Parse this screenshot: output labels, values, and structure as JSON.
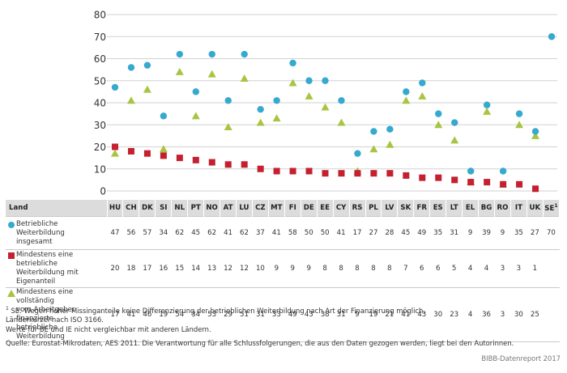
{
  "chart_data": {
    "type": "scatter",
    "ylim": [
      0,
      80
    ],
    "yticks": [
      0,
      10,
      20,
      30,
      40,
      50,
      60,
      70,
      80
    ],
    "grid": true,
    "categories": [
      "HU",
      "CH",
      "DK",
      "SI",
      "NL",
      "PT",
      "NO",
      "AT",
      "LU",
      "CZ",
      "MT",
      "FI",
      "DE",
      "EE",
      "CY",
      "RS",
      "PL",
      "LV",
      "SK",
      "FR",
      "ES",
      "LT",
      "EL",
      "BG",
      "RO",
      "IT",
      "UK",
      "SE"
    ],
    "last_category_sup": "1",
    "series": [
      {
        "name": "Betriebliche Weiterbildung insgesamt",
        "marker": "circle",
        "color": "#36a9cf",
        "values": [
          47,
          56,
          57,
          34,
          62,
          45,
          62,
          41,
          62,
          37,
          41,
          58,
          50,
          50,
          41,
          17,
          27,
          28,
          45,
          49,
          35,
          31,
          9,
          39,
          9,
          35,
          27,
          70
        ],
        "display": [
          "47",
          "56",
          "57",
          "34",
          "62",
          "45",
          "62",
          "41",
          "62",
          "37",
          "41",
          "58",
          "50",
          "50",
          "41",
          "17",
          "27",
          "28",
          "45",
          "49",
          "35",
          "31",
          "9",
          "39",
          "9",
          "35",
          "27",
          "70"
        ]
      },
      {
        "name": "Mindestens eine betriebliche Weiterbildung mit Eigenanteil",
        "marker": "square",
        "color": "#c4202f",
        "values": [
          20,
          18,
          17,
          16,
          15,
          14,
          13,
          12,
          12,
          10,
          9,
          9,
          9,
          8,
          8,
          8,
          8,
          8,
          7,
          6,
          6,
          5,
          4,
          4,
          3,
          3,
          1,
          null
        ],
        "display": [
          "20",
          "18",
          "17",
          "16",
          "15",
          "14",
          "13",
          "12",
          "12",
          "10",
          "9",
          "9",
          "9",
          "8",
          "8",
          "8",
          "8",
          "8",
          "7",
          "6",
          "6",
          "5",
          "4",
          "4",
          "3",
          "3",
          "1",
          ""
        ]
      },
      {
        "name": "Mindestens eine vollständig vom Arbeitgeber finanzierte betriebliche Weiterbildung",
        "marker": "triangle",
        "color": "#a8c541",
        "values": [
          17,
          41,
          46,
          19,
          54,
          34,
          53,
          29,
          51,
          31,
          33,
          49,
          43,
          38,
          31,
          9,
          19,
          21,
          41,
          43,
          30,
          23,
          4,
          36,
          3,
          30,
          25,
          null
        ],
        "display": [
          "17",
          "41",
          "46",
          "19",
          "54",
          "34",
          "53",
          "29",
          "51",
          "31",
          "33",
          "49",
          "43",
          "38",
          "31",
          "9",
          "19",
          "21",
          "41",
          "43",
          "30",
          "23",
          "4",
          "36",
          "3",
          "30",
          "25",
          ""
        ]
      }
    ]
  },
  "table": {
    "header_label": "Land",
    "row_labels": [
      "Betriebliche Weiterbildung\ninsgesamt",
      "Mindestens eine betriebliche\nWeiterbildung mit Eigenanteil",
      "Mindestens eine vollständig\nvom Arbeitgeber finanzierte\nbetriebliche Weiterbildung"
    ]
  },
  "notes": {
    "footnote_mark": "1",
    "footnote": " SE: Wegen hoher Missinganteile keine Differenzierung der betrieblichen Weiterbildung nach Art der Finanzierung möglich.",
    "line2": "Länderkürzel nach ISO 3166.",
    "line3": "Werte für BE und IE nicht vergleichbar mit anderen Ländern.",
    "source": "Quelle: Eurostat-Mikrodaten, AES 2011. Die Verantwortung für alle Schlussfolgerungen, die aus den Daten gezogen werden, liegt bei den Autorinnen.",
    "brand": "BIBB-Datenreport 2017"
  }
}
